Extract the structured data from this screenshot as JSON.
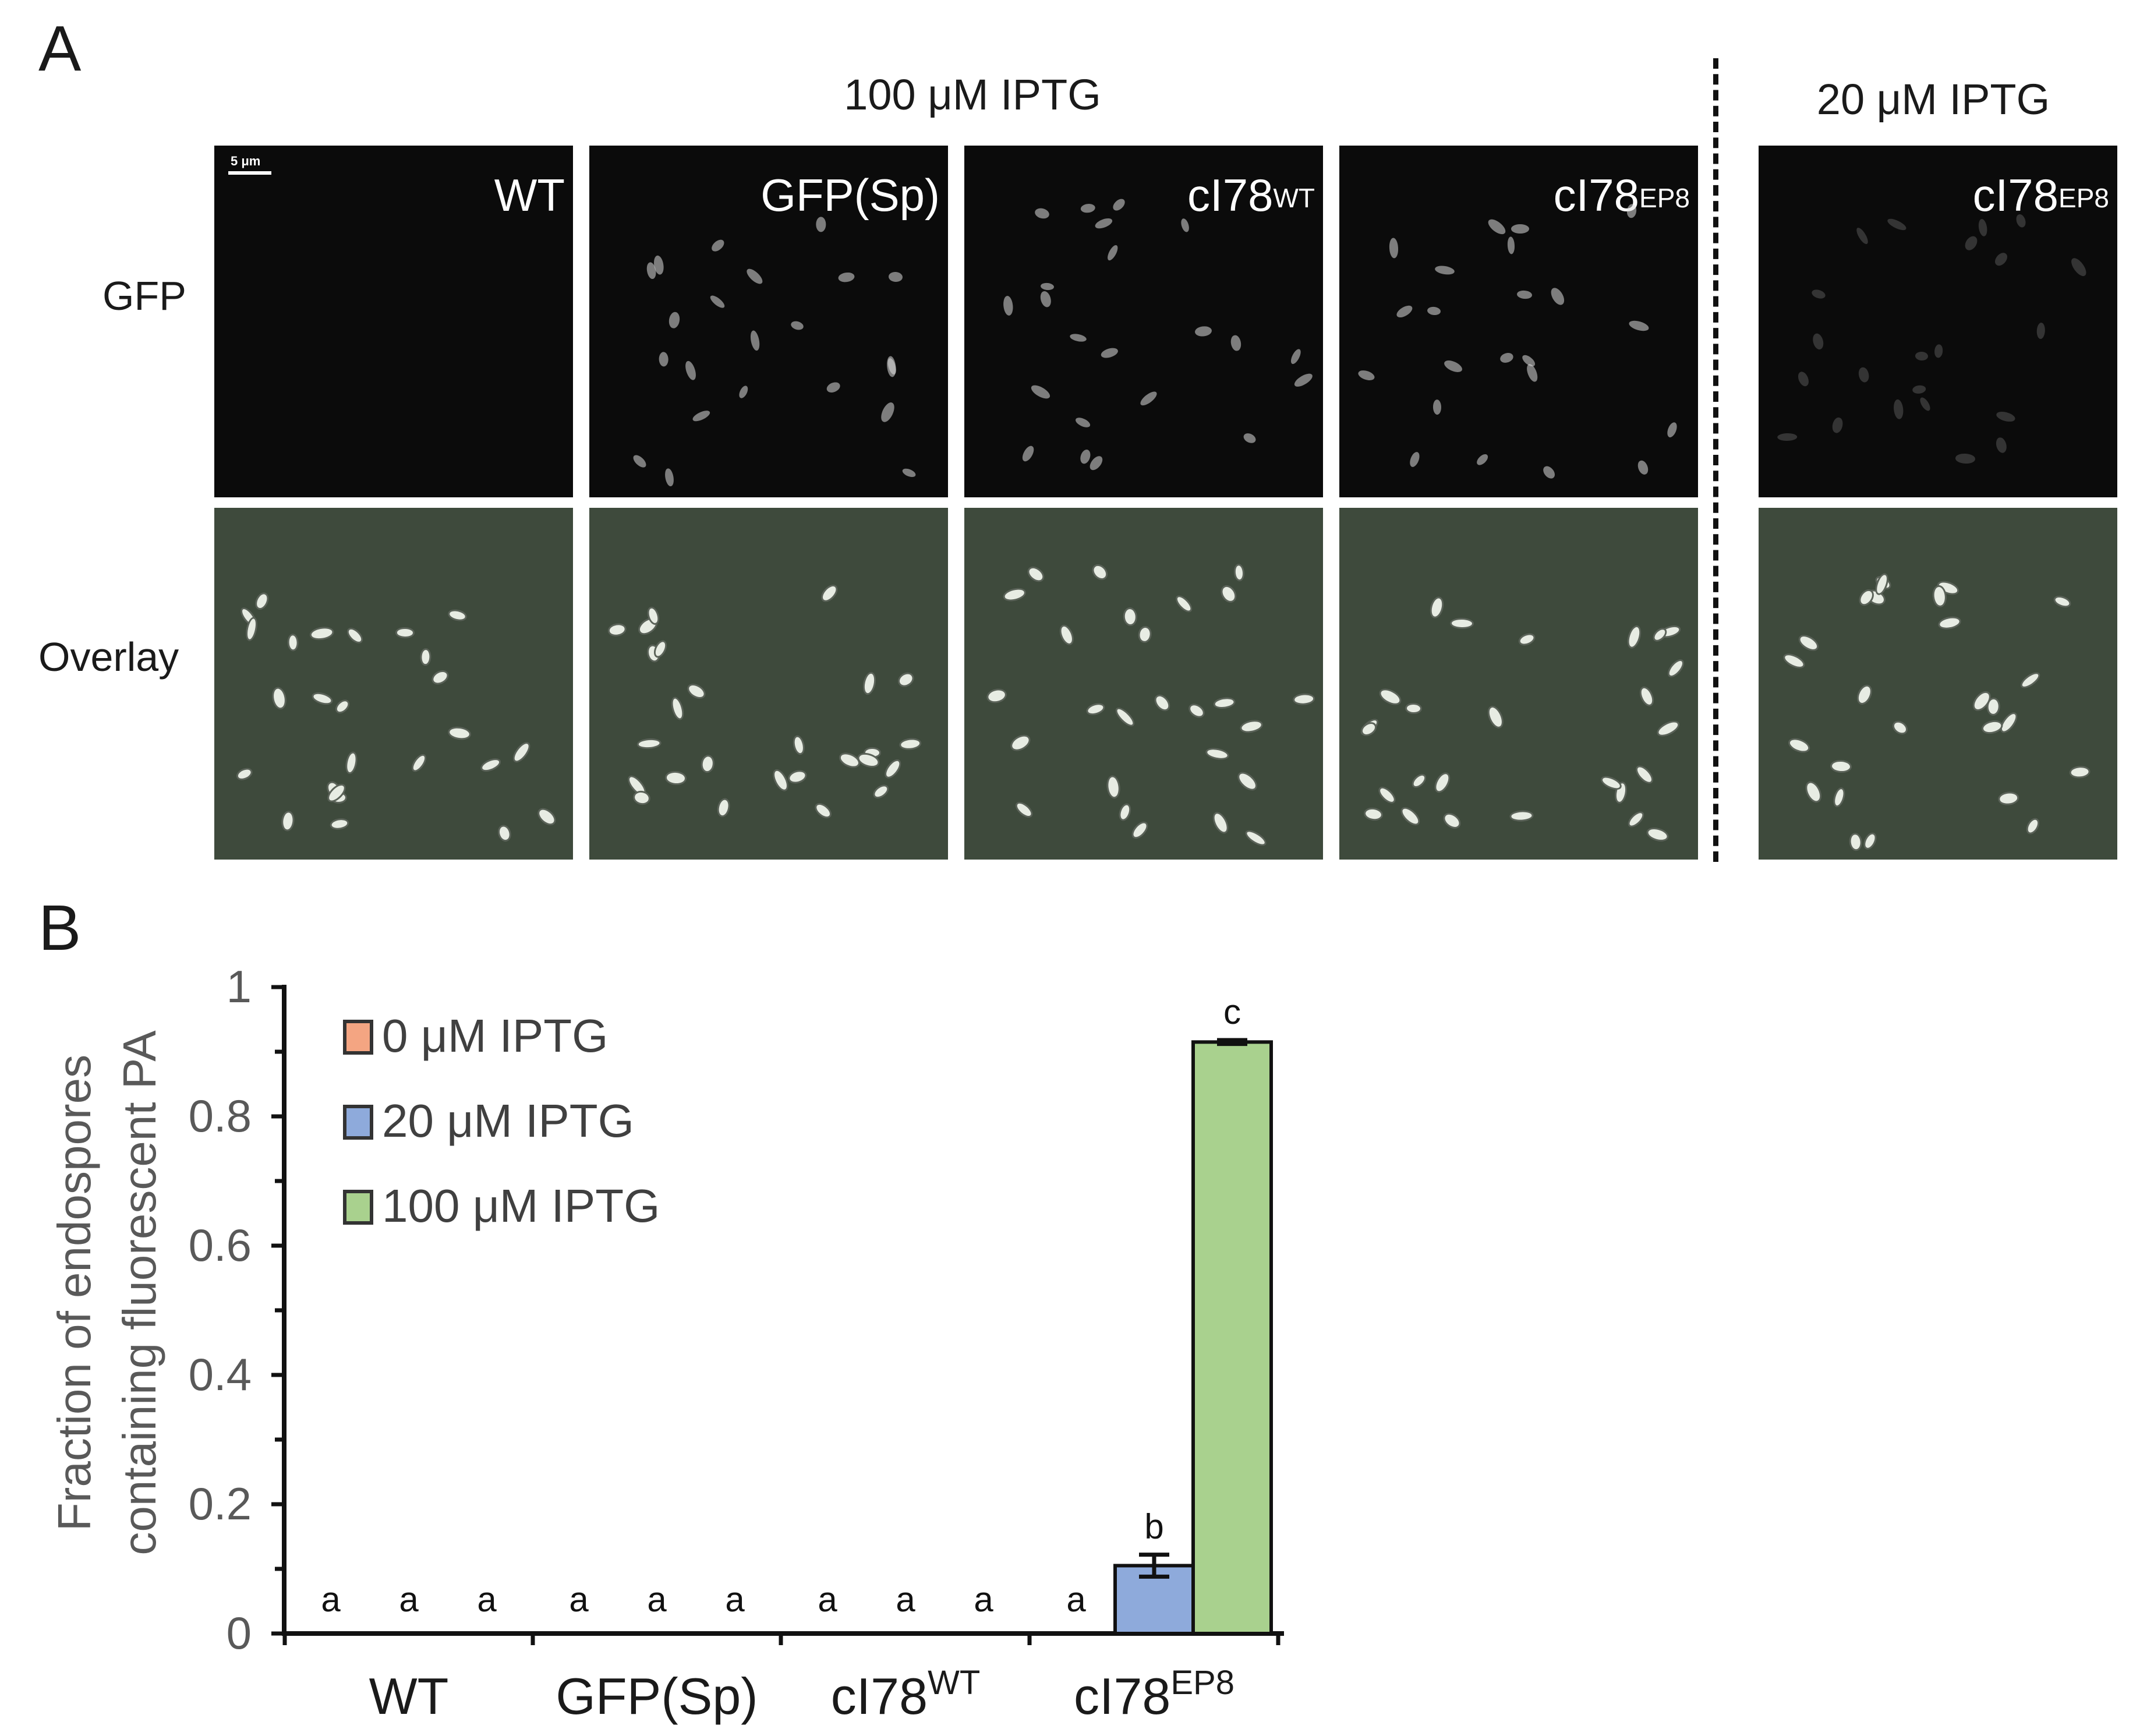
{
  "panel_a": {
    "letter": "A",
    "condition_main": "100 μM IPTG",
    "condition_side": "20 μM IPTG",
    "row_labels": [
      "GFP",
      "Overlay"
    ],
    "scale_bar": "5 μm",
    "columns": [
      {
        "base": "WT",
        "sup": ""
      },
      {
        "base": "GFP(Sp)",
        "sup": ""
      },
      {
        "base": "cI78",
        "sup": "WT"
      },
      {
        "base": "cI78",
        "sup": "EP8"
      },
      {
        "base": "cI78",
        "sup": "EP8"
      }
    ]
  },
  "panel_b": {
    "letter": "B"
  },
  "chart_data": {
    "type": "bar",
    "ylabel": "Fraction of endospores containing fluorescent PA",
    "ylabel_lines": [
      "Fraction of endospores",
      "containing fluorescent PA"
    ],
    "ylim": [
      0,
      1
    ],
    "yticks": [
      "0",
      "0.2",
      "0.4",
      "0.6",
      "0.8",
      "1"
    ],
    "categories": [
      {
        "base": "WT",
        "sup": ""
      },
      {
        "base": "GFP(Sp)",
        "sup": ""
      },
      {
        "base": "cI78",
        "sup": "WT"
      },
      {
        "base": "cI78",
        "sup": "EP8"
      }
    ],
    "series": [
      {
        "name": "0 μM IPTG",
        "color": "#f4a582",
        "values": [
          0,
          0,
          0,
          0
        ],
        "errors": [
          0,
          0,
          0,
          0
        ],
        "labels": [
          "a",
          "a",
          "a",
          "a"
        ]
      },
      {
        "name": "20 μM IPTG",
        "color": "#8eaadb",
        "values": [
          0,
          0,
          0,
          0.105
        ],
        "errors": [
          0,
          0,
          0,
          0.017
        ],
        "labels": [
          "a",
          "a",
          "a",
          "b"
        ]
      },
      {
        "name": "100 μM IPTG",
        "color": "#a9d18e",
        "values": [
          0,
          0,
          0,
          0.915
        ],
        "errors": [
          0,
          0,
          0,
          0.003
        ],
        "labels": [
          "a",
          "a",
          "a",
          "c"
        ]
      }
    ],
    "legend_position": "top-left"
  }
}
